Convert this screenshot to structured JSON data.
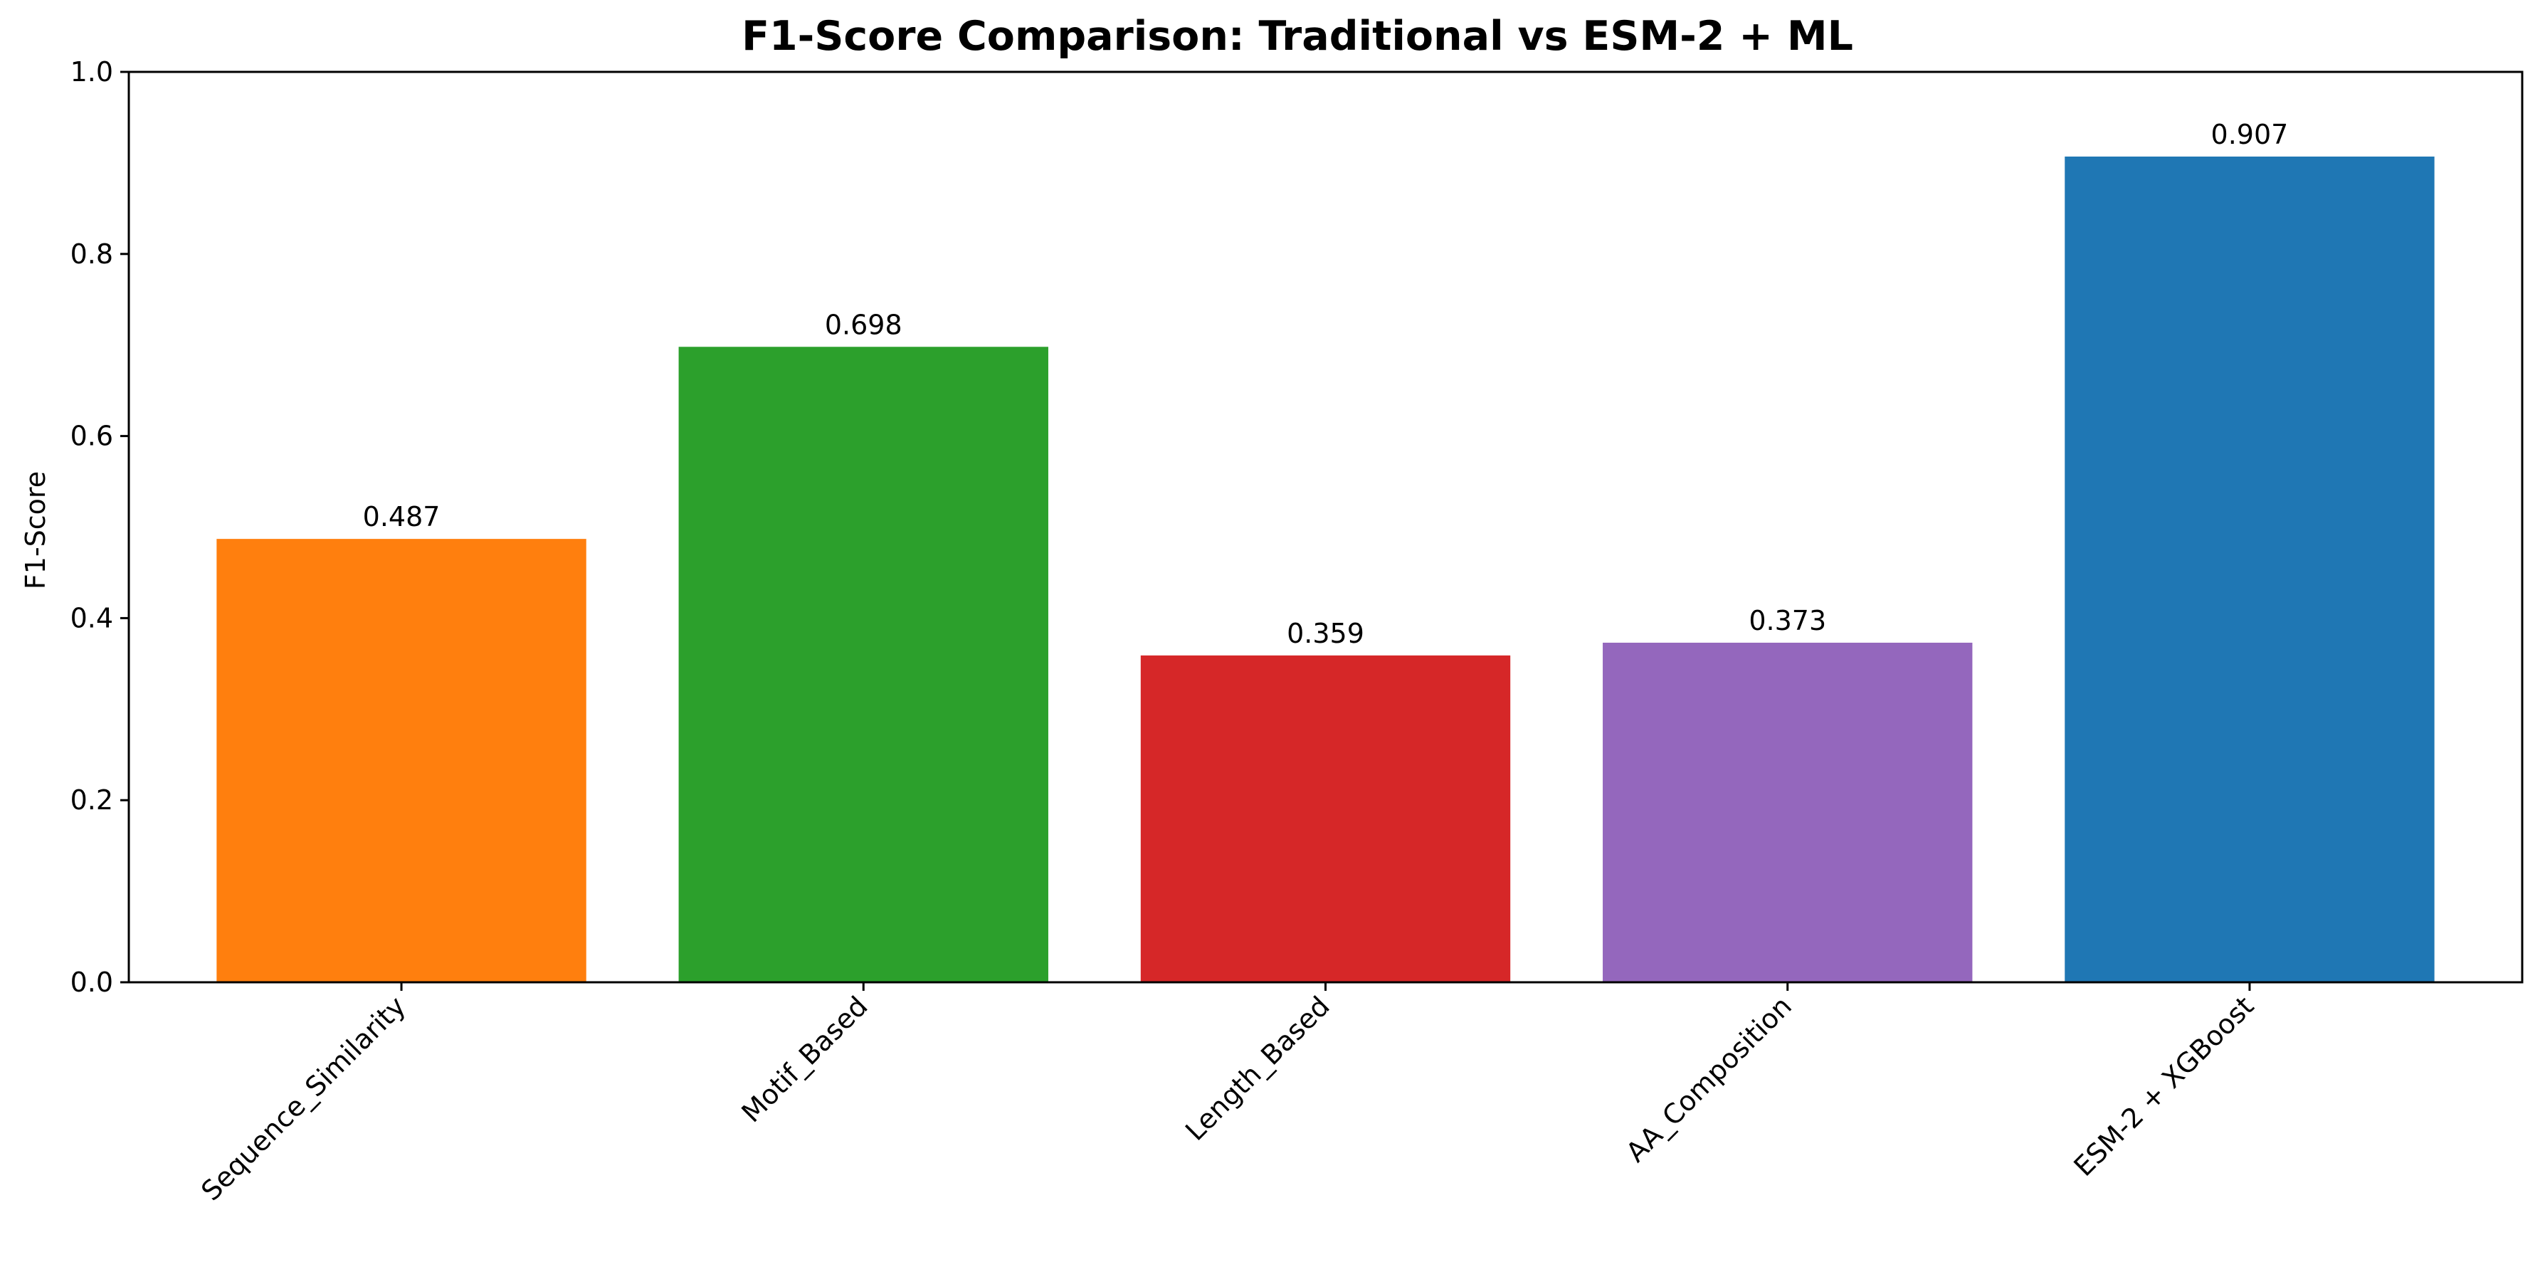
{
  "chart_data": {
    "type": "bar",
    "title": "F1-Score Comparison: Traditional vs ESM-2 + ML",
    "xlabel": "",
    "ylabel": "F1-Score",
    "ylim": [
      0,
      1.0
    ],
    "yticks": [
      "0.0",
      "0.2",
      "0.4",
      "0.6",
      "0.8",
      "1.0"
    ],
    "grid": false,
    "legend": "none",
    "categories": [
      "Sequence_Similarity",
      "Motif_Based",
      "Length_Based",
      "AA_Composition",
      "ESM-2 + XGBoost"
    ],
    "values": [
      0.487,
      0.698,
      0.359,
      0.373,
      0.907
    ],
    "value_labels": [
      "0.487",
      "0.698",
      "0.359",
      "0.373",
      "0.907"
    ],
    "colors": [
      "#ff7f0e",
      "#2ca02c",
      "#d62728",
      "#9467bd",
      "#1f77b4"
    ]
  }
}
